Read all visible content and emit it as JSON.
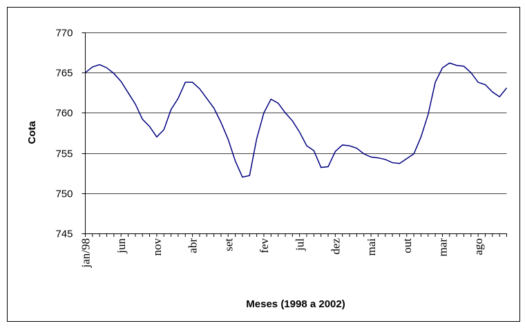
{
  "chart_data": {
    "type": "line",
    "x_label": "Meses (1998 a 2002)",
    "y_label": "Cota",
    "categories": [
      "jan/98",
      null,
      null,
      null,
      null,
      "jun",
      null,
      null,
      null,
      null,
      "nov",
      null,
      null,
      null,
      null,
      "abr",
      null,
      null,
      null,
      null,
      "set",
      null,
      null,
      null,
      null,
      "fev",
      null,
      null,
      null,
      null,
      "jul",
      null,
      null,
      null,
      null,
      "dez",
      null,
      null,
      null,
      null,
      "mai",
      null,
      null,
      null,
      null,
      "out",
      null,
      null,
      null,
      null,
      "mar",
      null,
      null,
      null,
      null,
      "ago",
      null,
      null,
      null,
      null
    ],
    "series": [
      {
        "name": "Cota",
        "color": "#000080",
        "values": [
          765.0,
          765.7,
          766.0,
          765.6,
          764.9,
          763.9,
          762.5,
          761.1,
          759.2,
          758.3,
          757.0,
          757.9,
          760.4,
          761.8,
          763.8,
          763.8,
          763.0,
          761.8,
          760.6,
          758.8,
          756.7,
          754.0,
          752.0,
          752.2,
          756.8,
          760.0,
          761.7,
          761.2,
          760.0,
          759.0,
          757.6,
          755.9,
          755.3,
          753.2,
          753.3,
          755.2,
          756.0,
          755.9,
          755.6,
          754.9,
          754.5,
          754.4,
          754.2,
          753.8,
          753.7,
          754.3,
          754.9,
          757.0,
          759.8,
          763.8,
          765.6,
          766.2,
          765.9,
          765.8,
          765.0,
          763.8,
          763.5,
          762.6,
          762.0,
          763.1
        ]
      }
    ],
    "ylim": [
      745,
      770
    ],
    "yticks": [
      745,
      750,
      755,
      760,
      765,
      770
    ],
    "grid": true
  }
}
